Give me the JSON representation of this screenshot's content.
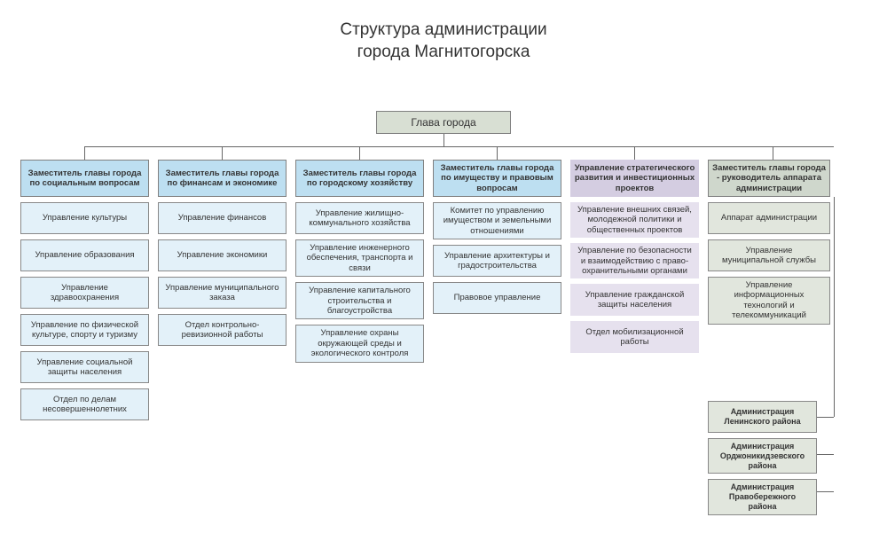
{
  "type": "org-chart",
  "background_color": "#ffffff",
  "text_color": "#333333",
  "title_line1": "Структура администрации",
  "title_line2": "города Магнитогорска",
  "title_fontsize": 19,
  "root": {
    "label": "Глава города",
    "bg": "#d8dfd3",
    "border": "#808080"
  },
  "palette": {
    "blue_head": "#bddff1",
    "blue_cell": "#e3f1f9",
    "purple_head": "#d4cde1",
    "purple_cell": "#e6e1ee",
    "green_head": "#cfd7cc",
    "green_cell": "#e1e6dd",
    "connector": "#666666",
    "cell_border": "#888888"
  },
  "columns": [
    {
      "style": "blue",
      "head": "Заместитель главы города по социальным вопросам",
      "items": [
        "Управление культуры",
        "Управление образования",
        "Управление здравоохранения",
        "Управление по физической культуре, спорту и туризму",
        "Управление социальной защиты населения",
        "Отдел по делам несовершеннолетних"
      ]
    },
    {
      "style": "blue",
      "head": "Заместитель главы города по финансам и экономике",
      "items": [
        "Управление финансов",
        "Управление экономики",
        "Управление  муниципального заказа",
        "Отдел контрольно-ревизионной работы"
      ]
    },
    {
      "style": "blue",
      "head": "Заместитель главы города по городскому хозяйству",
      "items": [
        "Управление жилищно-коммунального хозяйства",
        "Управление инженерного обеспечения, транспорта и связи",
        "Управление капитального строительства и благоустройства",
        "Управление охраны окружающей среды и экологического контроля"
      ]
    },
    {
      "style": "blue",
      "head": "Заместитель главы города по имуществу и правовым вопросам",
      "items": [
        "Комитет по управлению имуществом и земельными отношениями",
        "Управление архитектуры и градостроительства",
        "Правовое управление"
      ]
    },
    {
      "style": "purple",
      "head": "Управление стратегического развития и инвестиционных проектов",
      "items": [
        "Управление внешних связей, молодежной политики и общественных проектов",
        "Управление по безопасности и взаимодействию с право­охранительными органами",
        "Управление гражданской защиты населения",
        "Отдел мобилизационной работы"
      ]
    },
    {
      "style": "green",
      "head": "Заместитель главы города - руководитель аппарата администрации",
      "items": [
        "Аппарат администрации",
        "Управление муниципальной службы",
        "Управление информационных технологий и телекоммуникаций"
      ]
    }
  ],
  "districts": [
    "Администрация Ленинского района",
    "Администрация Орджоникидзевского района",
    "Администрация Правобережного района"
  ]
}
